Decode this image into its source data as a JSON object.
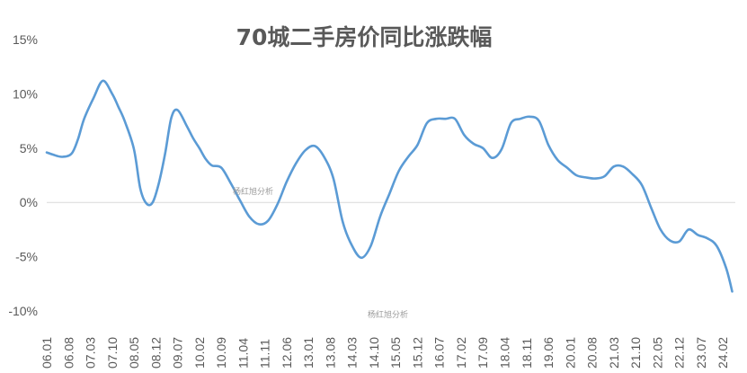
{
  "chart_data": {
    "type": "line",
    "title": "70城二手房价同比涨跌幅",
    "ylim": [
      -10,
      15
    ],
    "yticks": [
      -10,
      -5,
      0,
      5,
      10,
      15
    ],
    "ytick_labels": [
      "-10%",
      "-5%",
      "0%",
      "5%",
      "10%",
      "15%"
    ],
    "x_tick_labels": [
      "06.01",
      "06.08",
      "07.03",
      "07.10",
      "08.05",
      "08.12",
      "09.07",
      "10.02",
      "10.09",
      "11.04",
      "11.11",
      "12.06",
      "13.01",
      "13.08",
      "14.03",
      "14.10",
      "15.05",
      "15.12",
      "16.07",
      "17.02",
      "17.09",
      "18.04",
      "18.11",
      "19.06",
      "20.01",
      "20.08",
      "21.03",
      "21.10",
      "22.05",
      "22.12",
      "23.07",
      "24.02"
    ],
    "grid": false,
    "color": "#5b9bd5",
    "watermarks": [
      "杨红旭分析",
      "杨红旭分析"
    ],
    "series": [
      {
        "x": [
          "06.01",
          "06.03",
          "06.06",
          "06.09",
          "06.11",
          "07.01",
          "07.04",
          "07.07",
          "07.10",
          "07.12",
          "08.02",
          "08.05",
          "08.07",
          "08.09",
          "08.11",
          "09.01",
          "09.03",
          "09.05",
          "09.07",
          "09.10",
          "09.12",
          "10.02",
          "10.04",
          "10.06",
          "10.09",
          "10.12",
          "11.03",
          "11.06",
          "11.09",
          "11.12",
          "12.03",
          "12.06",
          "12.09",
          "12.12",
          "13.03",
          "13.06",
          "13.09",
          "13.12",
          "14.03",
          "14.06",
          "14.09",
          "14.12",
          "15.03",
          "15.06",
          "15.09",
          "15.12",
          "16.03",
          "16.06",
          "16.09",
          "16.12",
          "17.03",
          "17.06",
          "17.09",
          "17.12",
          "18.03",
          "18.06",
          "18.09",
          "18.12",
          "19.03",
          "19.06",
          "19.09",
          "19.12",
          "20.03",
          "20.06",
          "20.09",
          "20.12",
          "21.03",
          "21.06",
          "21.09",
          "21.12",
          "22.03",
          "22.06",
          "22.09",
          "22.12",
          "23.03",
          "23.06",
          "23.09",
          "23.12",
          "24.03",
          "24.05"
        ],
        "values": [
          4.6,
          4.4,
          4.2,
          4.5,
          5.8,
          7.7,
          9.6,
          11.2,
          10.0,
          8.8,
          7.5,
          4.9,
          1.3,
          -0.1,
          0.0,
          1.8,
          4.5,
          7.8,
          8.5,
          7.0,
          5.9,
          5.0,
          4.0,
          3.4,
          3.2,
          1.8,
          0.2,
          -1.3,
          -2.0,
          -1.7,
          -0.2,
          1.9,
          3.6,
          4.8,
          5.2,
          4.2,
          2.2,
          -1.8,
          -4.0,
          -5.1,
          -4.0,
          -1.3,
          0.8,
          2.9,
          4.2,
          5.3,
          7.3,
          7.7,
          7.7,
          7.7,
          6.2,
          5.4,
          5.0,
          4.1,
          4.9,
          7.3,
          7.7,
          7.9,
          7.5,
          5.3,
          3.9,
          3.2,
          2.5,
          2.3,
          2.2,
          2.4,
          3.3,
          3.3,
          2.6,
          1.6,
          -0.5,
          -2.5,
          -3.5,
          -3.6,
          -2.5,
          -3.0,
          -3.3,
          -4.0,
          -6.0,
          -8.2
        ]
      }
    ]
  }
}
